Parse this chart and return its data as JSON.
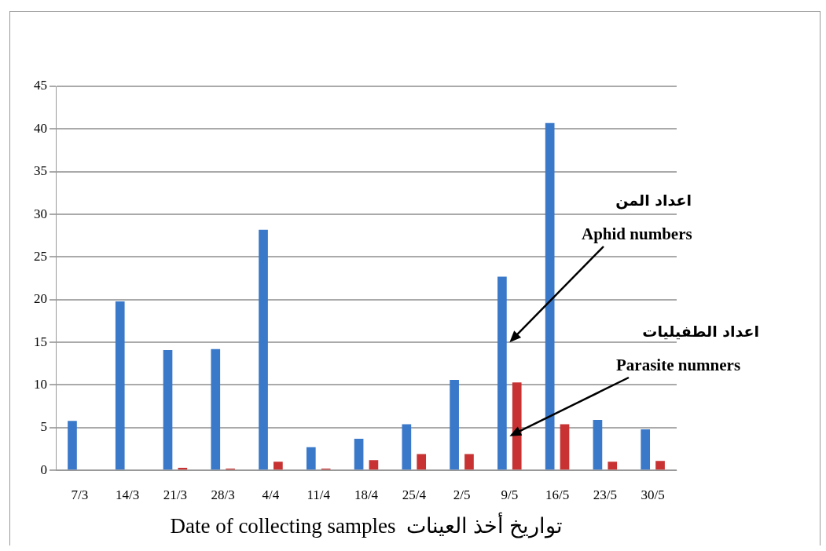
{
  "chart_data": {
    "type": "bar",
    "xlabel": "Date of collecting samples  تواريخ أخذ العينات",
    "categories": [
      "7/3",
      "14/3",
      "21/3",
      "28/3",
      "4/4",
      "11/4",
      "18/4",
      "25/4",
      "2/5",
      "9/5",
      "16/5",
      "23/5",
      "30/5"
    ],
    "series": [
      {
        "color": "#3a78c9",
        "values": [
          5.8,
          19.8,
          14.1,
          14.2,
          28.2,
          2.7,
          3.7,
          5.4,
          10.6,
          22.7,
          40.7,
          5.9,
          4.8
        ]
      },
      {
        "color": "#c83232",
        "values": [
          0,
          0,
          0.3,
          0.2,
          1.0,
          0.2,
          1.2,
          1.9,
          1.9,
          10.3,
          5.4,
          1.0,
          1.1
        ]
      }
    ],
    "ylim": [
      0,
      45
    ],
    "yticks": [
      0,
      5,
      10,
      15,
      20,
      25,
      30,
      35,
      40,
      45
    ],
    "grid": "y",
    "legend": false,
    "annotations": [
      "اعداد المن",
      {
        "text": "Aphid numbers",
        "x": "9/5",
        "y": 15
      },
      "اعداد الطفيليات",
      {
        "text": "Parasite numners",
        "x": "9/5",
        "y": 4
      }
    ]
  }
}
